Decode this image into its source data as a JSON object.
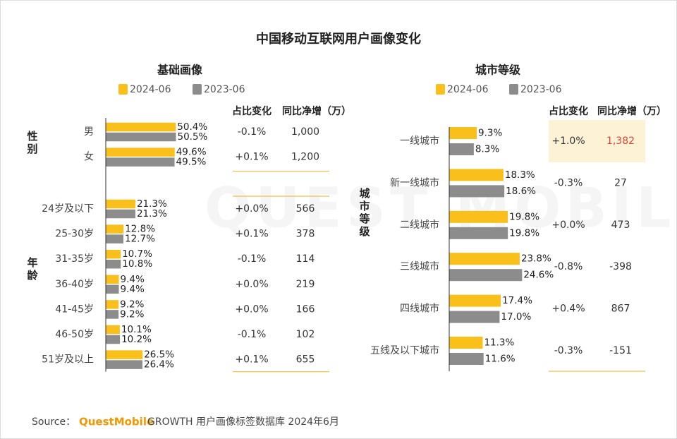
{
  "title": "中国移动互联网用户画像变化",
  "watermark": "QUEST MOBILE",
  "chart_data": [
    {
      "type": "hbar",
      "title": "基础画像",
      "groups": [
        {
          "label": "性别",
          "categories": [
            "男",
            "女"
          ]
        },
        {
          "label": "年龄",
          "categories": [
            "24岁及以下",
            "25-30岁",
            "31-35岁",
            "36-40岁",
            "41-45岁",
            "46-50岁",
            "51岁及以上"
          ]
        }
      ],
      "series": [
        {
          "name": "2024-06",
          "color": "#f9c01b",
          "values": [
            50.4,
            49.6,
            21.3,
            12.8,
            10.7,
            9.4,
            9.2,
            10.1,
            26.5
          ],
          "value_labels": [
            "50.4%",
            "49.6%",
            "21.3%",
            "12.8%",
            "10.7%",
            "9.4%",
            "9.2%",
            "10.1%",
            "26.5%"
          ]
        },
        {
          "name": "2023-06",
          "color": "#8c8c8c",
          "values": [
            50.5,
            49.5,
            21.3,
            12.7,
            10.8,
            9.4,
            9.2,
            10.2,
            26.4
          ],
          "value_labels": [
            "50.5%",
            "49.5%",
            "21.3%",
            "12.7%",
            "10.8%",
            "9.4%",
            "9.2%",
            "10.2%",
            "26.4%"
          ]
        }
      ],
      "table": {
        "columns": [
          "占比变化",
          "同比净增（万）"
        ],
        "rows": [
          [
            "-0.1%",
            "1,000"
          ],
          [
            "+0.1%",
            "1,200"
          ],
          [
            "+0.0%",
            "566"
          ],
          [
            "+0.1%",
            "378"
          ],
          [
            "-0.1%",
            "114"
          ],
          [
            "+0.0%",
            "219"
          ],
          [
            "+0.0%",
            "166"
          ],
          [
            "-0.1%",
            "102"
          ],
          [
            "+0.1%",
            "655"
          ]
        ]
      }
    },
    {
      "type": "hbar",
      "title": "城市等级",
      "groups": [
        {
          "label": "城市等级",
          "categories": [
            "一线城市",
            "新一线城市",
            "二线城市",
            "三线城市",
            "四线城市",
            "五线及以下城市"
          ]
        }
      ],
      "series": [
        {
          "name": "2024-06",
          "color": "#f9c01b",
          "values": [
            9.3,
            18.3,
            19.8,
            23.8,
            17.4,
            11.3
          ],
          "value_labels": [
            "9.3%",
            "18.3%",
            "19.8%",
            "23.8%",
            "17.4%",
            "11.3%"
          ]
        },
        {
          "name": "2023-06",
          "color": "#8c8c8c",
          "values": [
            8.3,
            18.6,
            19.8,
            24.6,
            17.0,
            11.6
          ],
          "value_labels": [
            "8.3%",
            "18.6%",
            "19.8%",
            "24.6%",
            "17.0%",
            "11.6%"
          ]
        }
      ],
      "table": {
        "columns": [
          "占比变化",
          "同比净增（万）"
        ],
        "rows": [
          [
            "+1.0%",
            "1,382"
          ],
          [
            "-0.3%",
            "27"
          ],
          [
            "+0.0%",
            "473"
          ],
          [
            "-0.8%",
            "-398"
          ],
          [
            "+0.4%",
            "867"
          ],
          [
            "-0.3%",
            "-151"
          ]
        ]
      }
    }
  ],
  "footer": {
    "label": "Source：",
    "brand": "QuestMobile",
    "text": "GROWTH 用户画像标签数据库 2024年6月"
  }
}
